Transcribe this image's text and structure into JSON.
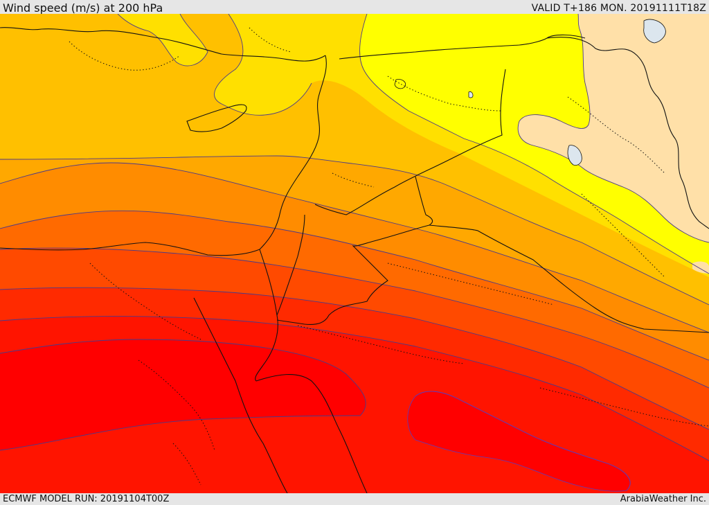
{
  "header": {
    "title": "Wind speed (m/s) at 200 hPa",
    "valid": "VALID T+186 MON. 20191111T18Z"
  },
  "footer": {
    "model_run": "ECMWF MODEL RUN: 20191104T00Z",
    "credit": "ArabiaWeather Inc."
  },
  "colors": {
    "band_1": "#ffe0a8",
    "band_2": "#ffff00",
    "band_3": "#ffe000",
    "band_4": "#ffc000",
    "band_5": "#ffa800",
    "band_6": "#ff8c00",
    "band_7": "#ff6a00",
    "band_8": "#ff4a00",
    "band_9": "#ff2a00",
    "band_10": "#ff1400",
    "band_11": "#ff0000",
    "water": "#dce6ee"
  }
}
